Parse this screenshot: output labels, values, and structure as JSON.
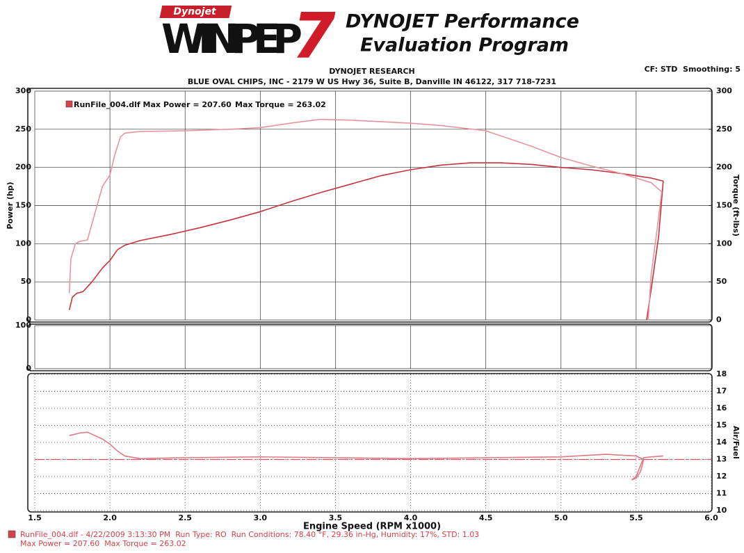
{
  "header": {
    "logo_brand": "Dynojet",
    "logo_name": "WINPEP",
    "logo_version": "7",
    "title_line1": "DYNOJET Performance",
    "title_line2": "Evaluation Program",
    "company": "DYNOJET RESEARCH",
    "address": "BLUE OVAL CHIPS, INC - 2179 W US Hwy 36, Suite B, Danville IN 46122, 317 718-7231",
    "settings": "CF: STD  Smoothing: 5"
  },
  "chart_data": [
    {
      "type": "line",
      "ylabel": "Power (hp)",
      "y2label": "Torque (ft-lbs)",
      "legend": [
        "RunFile_004.dlf Max Power = 207.60",
        "Max Torque = 263.02"
      ],
      "legend_color": "#d8404c",
      "xlim": [
        1.5,
        6.0
      ],
      "xticks": [
        1.5,
        2,
        2.5,
        3,
        3.5,
        4,
        4.5,
        5,
        5.5,
        6
      ],
      "ylim": [
        0,
        300
      ],
      "yticks": [
        0,
        50,
        100,
        150,
        200,
        250,
        300
      ],
      "y2lim": [
        0,
        300
      ],
      "y2ticks": [
        0,
        50,
        100,
        150,
        200,
        250,
        300
      ],
      "grid": true,
      "series": [
        {
          "color": "#c8323c",
          "x": [
            1.73,
            1.75,
            1.78,
            1.82,
            1.88,
            1.95,
            2.0,
            2.05,
            2.1,
            2.2,
            2.4,
            2.6,
            2.8,
            3.0,
            3.2,
            3.4,
            3.6,
            3.8,
            4.0,
            4.2,
            4.4,
            4.6,
            4.8,
            5.0,
            5.2,
            5.4,
            5.6,
            5.68,
            5.65,
            5.6,
            5.57
          ],
          "values": [
            13,
            30,
            35,
            37,
            50,
            68,
            78,
            92,
            98,
            104,
            112,
            121,
            131,
            142,
            155,
            167,
            178,
            189,
            197,
            203,
            206,
            206,
            204,
            200,
            197,
            192,
            186,
            182,
            110,
            40,
            0
          ]
        },
        {
          "color": "#e8949e",
          "axis": "y2",
          "x": [
            1.73,
            1.74,
            1.77,
            1.8,
            1.85,
            1.9,
            1.95,
            2.0,
            2.03,
            2.07,
            2.1,
            2.2,
            2.5,
            2.8,
            3.0,
            3.2,
            3.4,
            3.6,
            3.8,
            4.0,
            4.2,
            4.5,
            4.8,
            5.0,
            5.2,
            5.4,
            5.6,
            5.67,
            5.64,
            5.6,
            5.58
          ],
          "values": [
            35,
            80,
            100,
            103,
            105,
            140,
            175,
            190,
            215,
            240,
            245,
            247,
            248,
            250,
            252,
            258,
            263,
            262,
            260,
            258,
            255,
            248,
            228,
            213,
            202,
            192,
            180,
            168,
            120,
            60,
            0
          ]
        }
      ]
    },
    {
      "type": "line",
      "xlim": [
        1.5,
        6.0
      ],
      "xticks": [
        1.5,
        2,
        2.5,
        3,
        3.5,
        4,
        4.5,
        5,
        5.5,
        6
      ],
      "ylim": [
        0,
        100
      ],
      "yticks": [
        0,
        100
      ],
      "grid": true,
      "series": []
    },
    {
      "type": "line",
      "xlabel": "Engine Speed (RPM x1000)",
      "y2label": "Air/Fuel",
      "xlim": [
        1.5,
        6.0
      ],
      "xticks": [
        1.5,
        {
          "value": 2,
          "label": "2.0"
        },
        2.5,
        {
          "value": 3,
          "label": "3.0"
        },
        3.5,
        {
          "value": 4,
          "label": "4.0"
        },
        4.5,
        {
          "value": 5,
          "label": "5.0"
        },
        5.5,
        {
          "value": 6,
          "label": "6.0"
        }
      ],
      "y2lim": [
        10,
        18
      ],
      "y2ticks": [
        10,
        11,
        12,
        13,
        14,
        15,
        16,
        17,
        18
      ],
      "grid": true,
      "reference_line": 13,
      "reference_color": "#e0505a",
      "series": [
        {
          "color": "#e07a86",
          "axis": "y2",
          "x": [
            1.73,
            1.8,
            1.85,
            1.9,
            1.95,
            2.0,
            2.05,
            2.1,
            2.2,
            2.5,
            3.0,
            3.5,
            4.0,
            4.5,
            5.0,
            5.3,
            5.5,
            5.55,
            5.53,
            5.5,
            5.47,
            5.5,
            5.55,
            5.6,
            5.68
          ],
          "values": [
            14.4,
            14.55,
            14.6,
            14.4,
            14.2,
            13.9,
            13.5,
            13.2,
            13.05,
            13.1,
            13.15,
            13.1,
            13.05,
            13.1,
            13.15,
            13.3,
            13.2,
            13.0,
            12.3,
            11.9,
            11.8,
            12.0,
            13.1,
            13.15,
            13.2
          ]
        }
      ]
    }
  ],
  "footer": {
    "line1": "RunFile_004.dlf - 4/22/2009 3:13:30 PM  Run Type: RO  Run Conditions: 78.40 °F, 29.36 in-Hg, Humidity: 17%, STD: 1.03",
    "line2": "Max Power = 207.60  Max Torque = 263.02",
    "color": "#d8404c"
  }
}
